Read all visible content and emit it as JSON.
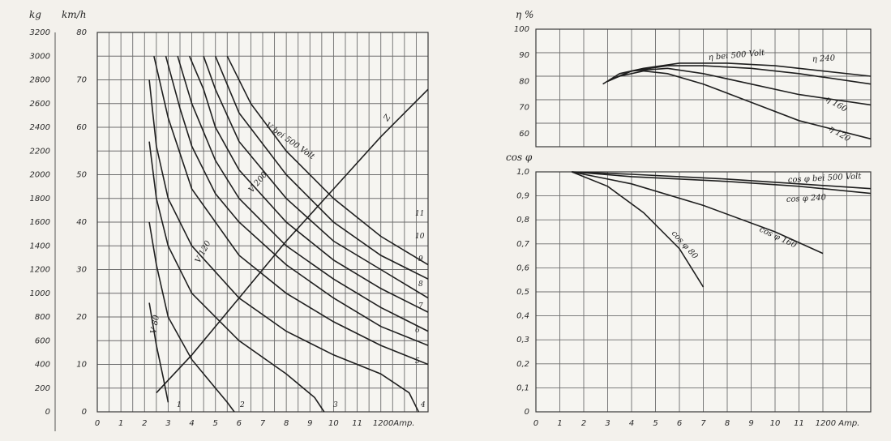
{
  "chart_data": [
    {
      "type": "line",
      "title": "",
      "left_axis_units": [
        "kg",
        "km/h"
      ],
      "left_axis_kg_ticks": [
        "0",
        "200",
        "400",
        "600",
        "800",
        "1000",
        "1200",
        "1400",
        "1600",
        "1800",
        "2000",
        "2200",
        "2400",
        "2600",
        "2800",
        "3000",
        "3200"
      ],
      "left_axis_kmh_ticks": [
        "0",
        "10",
        "20",
        "30",
        "40",
        "50",
        "60",
        "70",
        "80"
      ],
      "x_ticks": [
        "0",
        "1",
        "2",
        "3",
        "4",
        "5",
        "6",
        "7",
        "8",
        "9",
        "10",
        "11",
        "1200Amp."
      ],
      "xlim": [
        0,
        140
      ],
      "ylim": [
        0,
        80
      ],
      "series": [
        {
          "name": "Z",
          "points": [
            [
              25,
              4
            ],
            [
              40,
              12
            ],
            [
              60,
              24
            ],
            [
              80,
              36
            ],
            [
              100,
              47
            ],
            [
              120,
              58
            ],
            [
              140,
              68
            ]
          ]
        },
        {
          "name": "V 80",
          "points": [
            [
              22,
              23
            ],
            [
              25,
              14
            ],
            [
              28,
              7
            ],
            [
              30,
              2
            ]
          ]
        },
        {
          "name": "V 120",
          "points": [
            [
              22,
              40
            ],
            [
              25,
              31
            ],
            [
              30,
              20
            ],
            [
              40,
              11
            ],
            [
              50,
              5
            ],
            [
              55,
              2
            ],
            [
              58,
              0
            ]
          ]
        },
        {
          "name": "V 200",
          "points": [
            [
              22,
              57
            ],
            [
              25,
              45
            ],
            [
              30,
              35
            ],
            [
              40,
              25
            ],
            [
              60,
              15
            ],
            [
              80,
              8
            ],
            [
              92,
              3
            ],
            [
              96,
              0
            ]
          ]
        },
        {
          "name": "",
          "points": [
            [
              22,
              70
            ],
            [
              25,
              56
            ],
            [
              30,
              45
            ],
            [
              40,
              35
            ],
            [
              60,
              24
            ],
            [
              80,
              17
            ],
            [
              100,
              12
            ],
            [
              120,
              8
            ],
            [
              132,
              4
            ],
            [
              136,
              0
            ]
          ]
        },
        {
          "name": "",
          "points": [
            [
              24,
              75
            ],
            [
              30,
              62
            ],
            [
              40,
              47
            ],
            [
              60,
              33
            ],
            [
              80,
              25
            ],
            [
              100,
              19
            ],
            [
              120,
              14
            ],
            [
              140,
              10
            ]
          ]
        },
        {
          "name": "",
          "points": [
            [
              29,
              75
            ],
            [
              35,
              64
            ],
            [
              40,
              56
            ],
            [
              50,
              46
            ],
            [
              60,
              40
            ],
            [
              80,
              31
            ],
            [
              100,
              24
            ],
            [
              120,
              18
            ],
            [
              140,
              14
            ]
          ]
        },
        {
          "name": "",
          "points": [
            [
              34,
              75
            ],
            [
              40,
              65
            ],
            [
              50,
              53
            ],
            [
              60,
              45
            ],
            [
              80,
              35
            ],
            [
              100,
              28
            ],
            [
              120,
              22
            ],
            [
              140,
              17
            ]
          ]
        },
        {
          "name": "",
          "points": [
            [
              39,
              75
            ],
            [
              45,
              68
            ],
            [
              50,
              60
            ],
            [
              60,
              51
            ],
            [
              80,
              40
            ],
            [
              100,
              32
            ],
            [
              120,
              26
            ],
            [
              140,
              21
            ]
          ]
        },
        {
          "name": "",
          "points": [
            [
              45,
              75
            ],
            [
              50,
              68
            ],
            [
              60,
              57
            ],
            [
              80,
              45
            ],
            [
              100,
              36
            ],
            [
              120,
              30
            ],
            [
              140,
              24
            ]
          ]
        },
        {
          "name": "",
          "points": [
            [
              50,
              75
            ],
            [
              60,
              63
            ],
            [
              80,
              50
            ],
            [
              100,
              40
            ],
            [
              120,
              33
            ],
            [
              140,
              28
            ]
          ]
        },
        {
          "name": "V bei 500 Volt",
          "points": [
            [
              55,
              75
            ],
            [
              65,
              65
            ],
            [
              80,
              55
            ],
            [
              100,
              45
            ],
            [
              120,
              37
            ],
            [
              140,
              31
            ]
          ]
        }
      ],
      "annotations": {
        "notch_numbers": [
          "1",
          "2",
          "3",
          "4",
          "5",
          "6",
          "7",
          "8",
          "9",
          "10",
          "11"
        ],
        "inline_labels": [
          "V 80",
          "V 120",
          "V 200",
          "V bei 500 Volt",
          "Z"
        ]
      },
      "grid": true
    },
    {
      "type": "line",
      "title": "",
      "ylabel": "η %",
      "y_ticks": [
        "60",
        "70",
        "80",
        "90",
        "100"
      ],
      "ylim": [
        55,
        100
      ],
      "xlim": [
        0,
        140
      ],
      "series": [
        {
          "name": "η bei 500 Volt",
          "points": [
            [
              28,
              79
            ],
            [
              35,
              83
            ],
            [
              45,
              85
            ],
            [
              60,
              87
            ],
            [
              80,
              87
            ],
            [
              100,
              86
            ],
            [
              120,
              84
            ],
            [
              140,
              82
            ]
          ]
        },
        {
          "name": "η 240",
          "points": [
            [
              30,
              80
            ],
            [
              40,
              84
            ],
            [
              55,
              86
            ],
            [
              70,
              86
            ],
            [
              90,
              85
            ],
            [
              110,
              83
            ],
            [
              140,
              79
            ]
          ]
        },
        {
          "name": "η 160",
          "points": [
            [
              32,
              81
            ],
            [
              40,
              84
            ],
            [
              55,
              85
            ],
            [
              70,
              83
            ],
            [
              90,
              79
            ],
            [
              110,
              75
            ],
            [
              140,
              71
            ]
          ]
        },
        {
          "name": "η 120",
          "points": [
            [
              35,
              82
            ],
            [
              45,
              84
            ],
            [
              55,
              83
            ],
            [
              70,
              79
            ],
            [
              90,
              72
            ],
            [
              110,
              65
            ],
            [
              140,
              58
            ]
          ]
        }
      ],
      "grid": true
    },
    {
      "type": "line",
      "title": "",
      "ylabel": "cos φ",
      "y_ticks": [
        "0",
        "0,1",
        "0,2",
        "0,3",
        "0,4",
        "0,5",
        "0,6",
        "0,7",
        "0,8",
        "0,9",
        "1,0"
      ],
      "x_ticks": [
        "0",
        "1",
        "2",
        "3",
        "4",
        "5",
        "6",
        "7",
        "8",
        "9",
        "10",
        "11",
        "1200 Amp."
      ],
      "ylim": [
        0,
        1.0
      ],
      "xlim": [
        0,
        140
      ],
      "series": [
        {
          "name": "cos φ bei 500 Volt",
          "points": [
            [
              15,
              1.0
            ],
            [
              40,
              0.99
            ],
            [
              80,
              0.97
            ],
            [
              110,
              0.95
            ],
            [
              140,
              0.93
            ]
          ]
        },
        {
          "name": "cos φ 240",
          "points": [
            [
              15,
              1.0
            ],
            [
              40,
              0.98
            ],
            [
              80,
              0.96
            ],
            [
              110,
              0.94
            ],
            [
              140,
              0.91
            ]
          ]
        },
        {
          "name": "cos φ 160",
          "points": [
            [
              15,
              1.0
            ],
            [
              40,
              0.95
            ],
            [
              70,
              0.86
            ],
            [
              100,
              0.75
            ],
            [
              120,
              0.66
            ]
          ]
        },
        {
          "name": "cos φ 80",
          "points": [
            [
              15,
              1.0
            ],
            [
              30,
              0.94
            ],
            [
              45,
              0.83
            ],
            [
              60,
              0.68
            ],
            [
              70,
              0.52
            ]
          ]
        }
      ],
      "grid": true
    }
  ]
}
